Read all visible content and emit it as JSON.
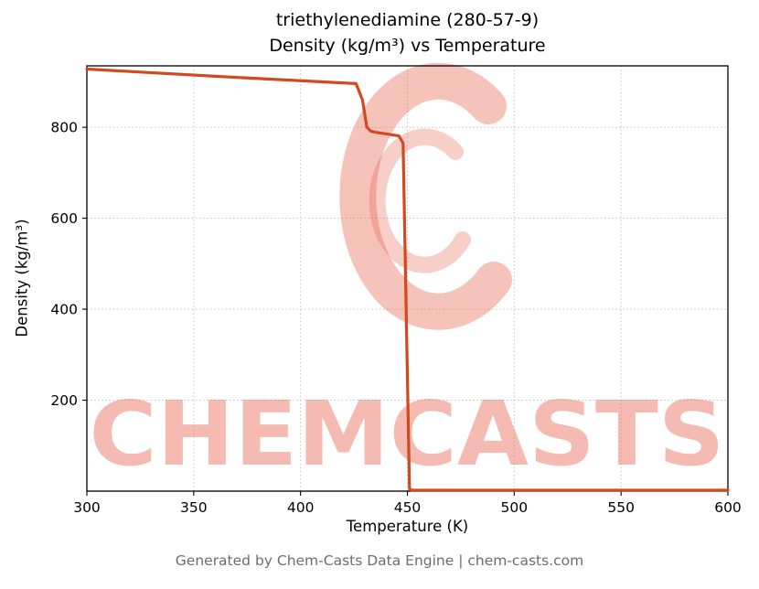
{
  "title_line1": "triethylenediamine (280-57-9)",
  "title_line2": "Density (kg/m³) vs Temperature",
  "footer": "Generated by Chem-Casts Data Engine | chem-casts.com",
  "watermark": {
    "text": "CHEMCASTS",
    "color": "#e8604c",
    "text_opacity": 0.42,
    "logo_opacity": 0.38
  },
  "chart_data": {
    "type": "line",
    "title": "triethylenediamine (280-57-9) — Density (kg/m³) vs Temperature",
    "xlabel": "Temperature (K)",
    "ylabel": "Density (kg/m³)",
    "xlim": [
      300,
      600
    ],
    "ylim": [
      0,
      935
    ],
    "x_ticks": [
      300,
      350,
      400,
      450,
      500,
      550,
      600
    ],
    "y_ticks": [
      200,
      400,
      600,
      800
    ],
    "grid": true,
    "legend": "none",
    "line_color": "#d2491f",
    "series": [
      {
        "name": "Density",
        "x": [
          300,
          360,
          426,
          429,
          431,
          433,
          435,
          446,
          448,
          451,
          452,
          500,
          550,
          600
        ],
        "y": [
          928,
          912,
          896,
          860,
          800,
          791,
          789,
          781,
          765,
          5,
          2,
          2,
          2,
          2
        ]
      }
    ]
  }
}
